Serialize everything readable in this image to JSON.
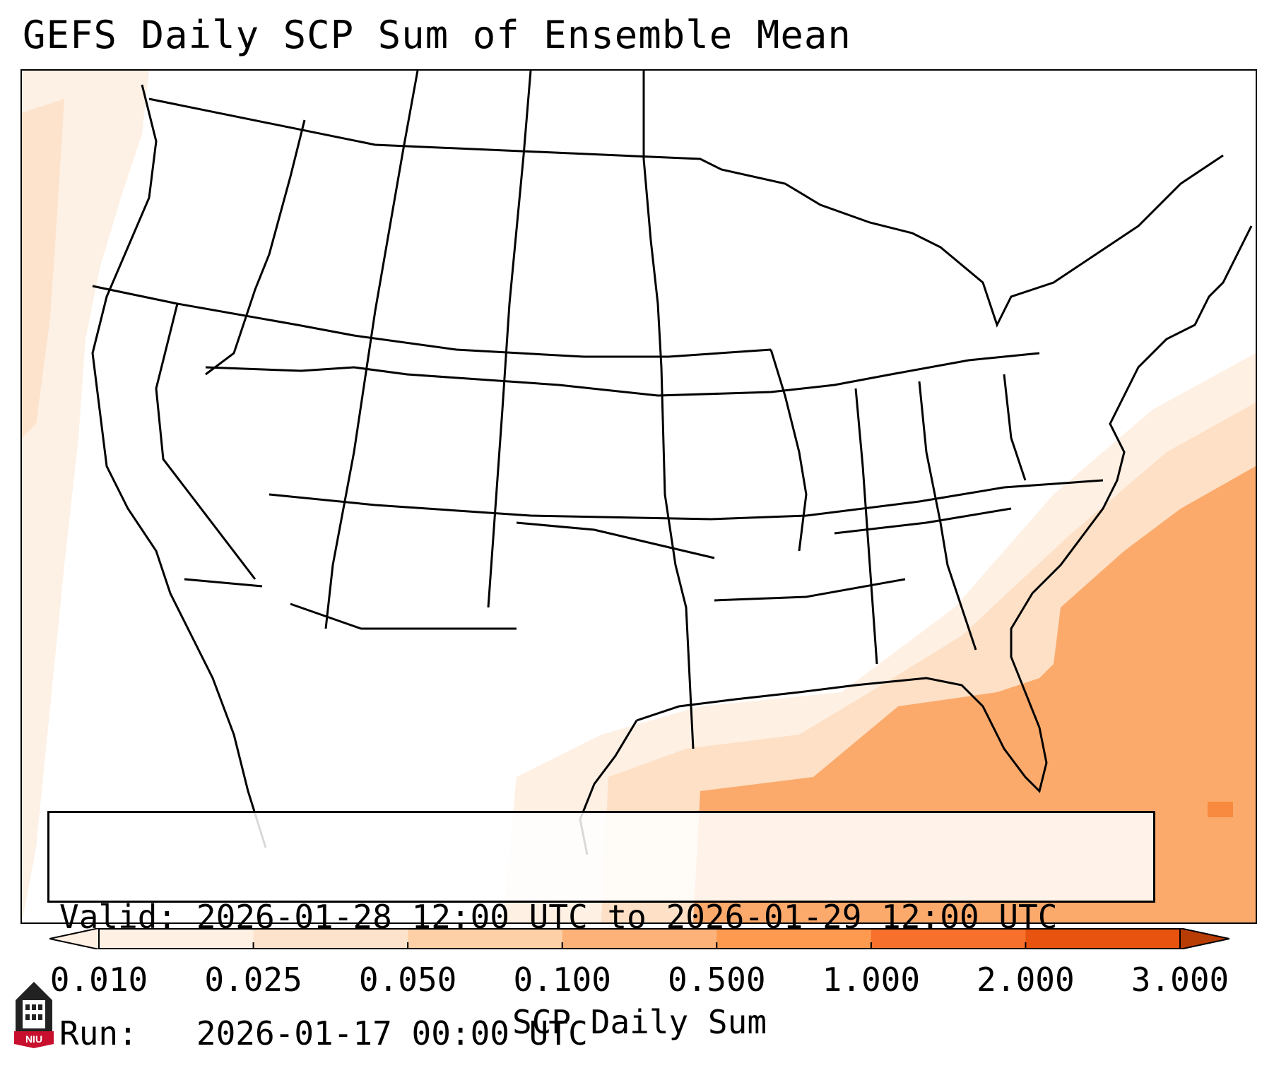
{
  "title": "GEFS Daily SCP Sum of Ensemble Mean",
  "info": {
    "valid_label": "Valid:",
    "valid_value": "2026-01-28 12:00 UTC to 2026-01-29 12:00 UTC",
    "run_label": "Run:",
    "run_value": "2026-01-17 00:00 UTC"
  },
  "colorbar": {
    "label": "SCP Daily Sum",
    "ticks": [
      "0.010",
      "0.025",
      "0.050",
      "0.100",
      "0.500",
      "1.000",
      "2.000",
      "3.000"
    ],
    "colors": [
      "#fff0e4",
      "#fee3cc",
      "#fdd0a8",
      "#fdb27a",
      "#fd9a50",
      "#f7712c",
      "#e8530f",
      "#b83d04"
    ],
    "extend": "both"
  },
  "logo": {
    "text": "NIU"
  }
}
